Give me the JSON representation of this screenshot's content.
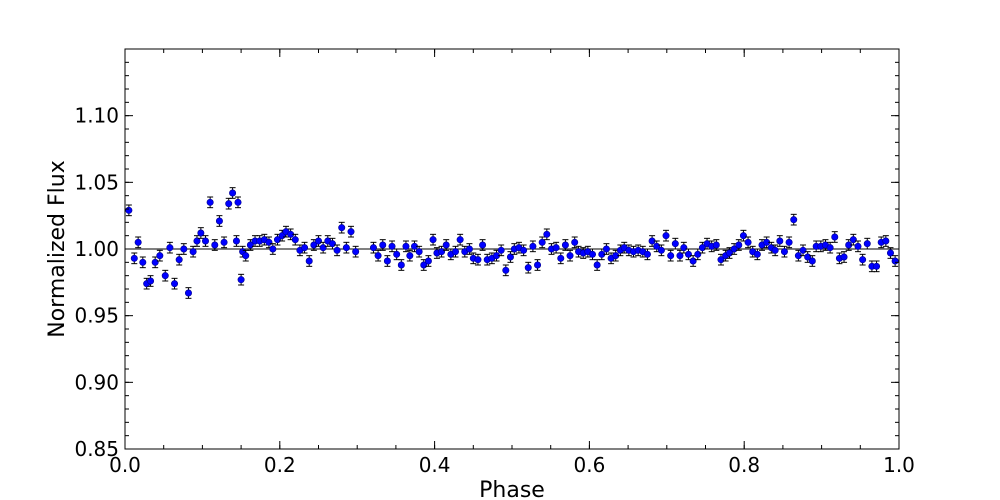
{
  "chart_data": {
    "type": "scatter",
    "title": "",
    "xlabel": "Phase",
    "ylabel": "Normalized Flux",
    "xlim": [
      0.0,
      1.0
    ],
    "ylim": [
      0.85,
      1.15
    ],
    "xticks": [
      0.0,
      0.2,
      0.4,
      0.6,
      0.8,
      1.0
    ],
    "xtick_labels": [
      "0.0",
      "0.2",
      "0.4",
      "0.6",
      "0.8",
      "1.0"
    ],
    "yticks": [
      0.85,
      0.9,
      0.95,
      1.0,
      1.05,
      1.1
    ],
    "ytick_labels": [
      "0.85",
      "0.90",
      "0.95",
      "1.00",
      "1.05",
      "1.10"
    ],
    "grid": false,
    "reference_line": 1.0,
    "marker_color": "#0000ff",
    "errorbar_color": "#000000",
    "error": 0.004,
    "points": [
      [
        0.005,
        1.029
      ],
      [
        0.012,
        0.993
      ],
      [
        0.017,
        1.005
      ],
      [
        0.023,
        0.99
      ],
      [
        0.028,
        0.974
      ],
      [
        0.033,
        0.976
      ],
      [
        0.039,
        0.99
      ],
      [
        0.045,
        0.995
      ],
      [
        0.052,
        0.98
      ],
      [
        0.058,
        1.001
      ],
      [
        0.064,
        0.974
      ],
      [
        0.07,
        0.992
      ],
      [
        0.076,
        1.0
      ],
      [
        0.082,
        0.967
      ],
      [
        0.088,
        0.998
      ],
      [
        0.093,
        1.006
      ],
      [
        0.098,
        1.012
      ],
      [
        0.104,
        1.006
      ],
      [
        0.11,
        1.035
      ],
      [
        0.116,
        1.003
      ],
      [
        0.122,
        1.021
      ],
      [
        0.128,
        1.005
      ],
      [
        0.134,
        1.034
      ],
      [
        0.139,
        1.042
      ],
      [
        0.144,
        1.006
      ],
      [
        0.146,
        1.035
      ],
      [
        0.15,
        0.977
      ],
      [
        0.152,
        0.998
      ],
      [
        0.156,
        0.995
      ],
      [
        0.162,
        1.003
      ],
      [
        0.168,
        1.006
      ],
      [
        0.174,
        1.006
      ],
      [
        0.18,
        1.007
      ],
      [
        0.186,
        1.005
      ],
      [
        0.191,
        1.0
      ],
      [
        0.197,
        1.007
      ],
      [
        0.203,
        1.01
      ],
      [
        0.208,
        1.013
      ],
      [
        0.214,
        1.011
      ],
      [
        0.22,
        1.007
      ],
      [
        0.226,
        0.999
      ],
      [
        0.232,
        1.001
      ],
      [
        0.238,
        0.991
      ],
      [
        0.244,
        1.003
      ],
      [
        0.25,
        1.006
      ],
      [
        0.256,
        1.001
      ],
      [
        0.262,
        1.006
      ],
      [
        0.268,
        1.004
      ],
      [
        0.274,
        0.999
      ],
      [
        0.28,
        1.016
      ],
      [
        0.286,
        1.001
      ],
      [
        0.292,
        1.013
      ],
      [
        0.298,
        0.998
      ],
      [
        0.321,
        1.001
      ],
      [
        0.327,
        0.995
      ],
      [
        0.333,
        1.003
      ],
      [
        0.339,
        0.991
      ],
      [
        0.345,
        1.002
      ],
      [
        0.351,
        0.996
      ],
      [
        0.357,
        0.988
      ],
      [
        0.363,
        1.002
      ],
      [
        0.368,
        0.995
      ],
      [
        0.374,
        1.002
      ],
      [
        0.38,
        0.998
      ],
      [
        0.386,
        0.988
      ],
      [
        0.392,
        0.991
      ],
      [
        0.398,
        1.007
      ],
      [
        0.403,
        0.997
      ],
      [
        0.409,
        0.998
      ],
      [
        0.415,
        1.003
      ],
      [
        0.421,
        0.996
      ],
      [
        0.427,
        0.998
      ],
      [
        0.433,
        1.007
      ],
      [
        0.439,
        0.998
      ],
      [
        0.445,
        1.0
      ],
      [
        0.45,
        0.993
      ],
      [
        0.456,
        0.992
      ],
      [
        0.462,
        1.003
      ],
      [
        0.468,
        0.992
      ],
      [
        0.474,
        0.993
      ],
      [
        0.48,
        0.995
      ],
      [
        0.486,
        0.999
      ],
      [
        0.492,
        0.984
      ],
      [
        0.498,
        0.994
      ],
      [
        0.503,
        1.0
      ],
      [
        0.509,
        1.001
      ],
      [
        0.515,
        0.999
      ],
      [
        0.521,
        0.986
      ],
      [
        0.527,
        1.002
      ],
      [
        0.533,
        0.988
      ],
      [
        0.539,
        1.005
      ],
      [
        0.545,
        1.011
      ],
      [
        0.551,
        1.0
      ],
      [
        0.557,
        1.001
      ],
      [
        0.563,
        0.993
      ],
      [
        0.569,
        1.003
      ],
      [
        0.575,
        0.995
      ],
      [
        0.581,
        1.005
      ],
      [
        0.586,
        0.998
      ],
      [
        0.592,
        0.997
      ],
      [
        0.598,
        0.998
      ],
      [
        0.604,
        0.996
      ],
      [
        0.61,
        0.988
      ],
      [
        0.616,
        0.996
      ],
      [
        0.622,
        1.0
      ],
      [
        0.628,
        0.993
      ],
      [
        0.634,
        0.995
      ],
      [
        0.64,
        0.999
      ],
      [
        0.645,
        1.001
      ],
      [
        0.651,
        0.999
      ],
      [
        0.657,
        0.998
      ],
      [
        0.663,
        0.999
      ],
      [
        0.669,
        0.998
      ],
      [
        0.675,
        0.996
      ],
      [
        0.681,
        1.006
      ],
      [
        0.687,
        1.002
      ],
      [
        0.693,
        0.999
      ],
      [
        0.699,
        1.01
      ],
      [
        0.705,
        0.995
      ],
      [
        0.711,
        1.004
      ],
      [
        0.717,
        0.995
      ],
      [
        0.722,
        1.001
      ],
      [
        0.728,
        0.996
      ],
      [
        0.734,
        0.991
      ],
      [
        0.74,
        0.996
      ],
      [
        0.746,
        1.001
      ],
      [
        0.752,
        1.004
      ],
      [
        0.758,
        1.002
      ],
      [
        0.764,
        1.003
      ],
      [
        0.77,
        0.992
      ],
      [
        0.776,
        0.995
      ],
      [
        0.781,
        0.997
      ],
      [
        0.787,
        1.0
      ],
      [
        0.793,
        1.003
      ],
      [
        0.799,
        1.01
      ],
      [
        0.805,
        1.005
      ],
      [
        0.811,
        0.998
      ],
      [
        0.817,
        0.996
      ],
      [
        0.823,
        1.003
      ],
      [
        0.829,
        1.005
      ],
      [
        0.835,
        1.001
      ],
      [
        0.84,
        0.999
      ],
      [
        0.846,
        1.006
      ],
      [
        0.852,
        0.998
      ],
      [
        0.858,
        1.005
      ],
      [
        0.864,
        1.022
      ],
      [
        0.87,
        0.995
      ],
      [
        0.876,
        0.999
      ],
      [
        0.882,
        0.994
      ],
      [
        0.888,
        0.991
      ],
      [
        0.893,
        1.002
      ],
      [
        0.899,
        1.002
      ],
      [
        0.905,
        1.003
      ],
      [
        0.911,
        1.001
      ],
      [
        0.917,
        1.009
      ],
      [
        0.923,
        0.993
      ],
      [
        0.929,
        0.994
      ],
      [
        0.935,
        1.003
      ],
      [
        0.941,
        1.007
      ],
      [
        0.947,
        1.002
      ],
      [
        0.953,
        0.992
      ],
      [
        0.959,
        1.004
      ],
      [
        0.965,
        0.987
      ],
      [
        0.971,
        0.987
      ],
      [
        0.977,
        1.005
      ],
      [
        0.983,
        1.006
      ],
      [
        0.989,
        0.997
      ],
      [
        0.995,
        0.991
      ]
    ]
  }
}
